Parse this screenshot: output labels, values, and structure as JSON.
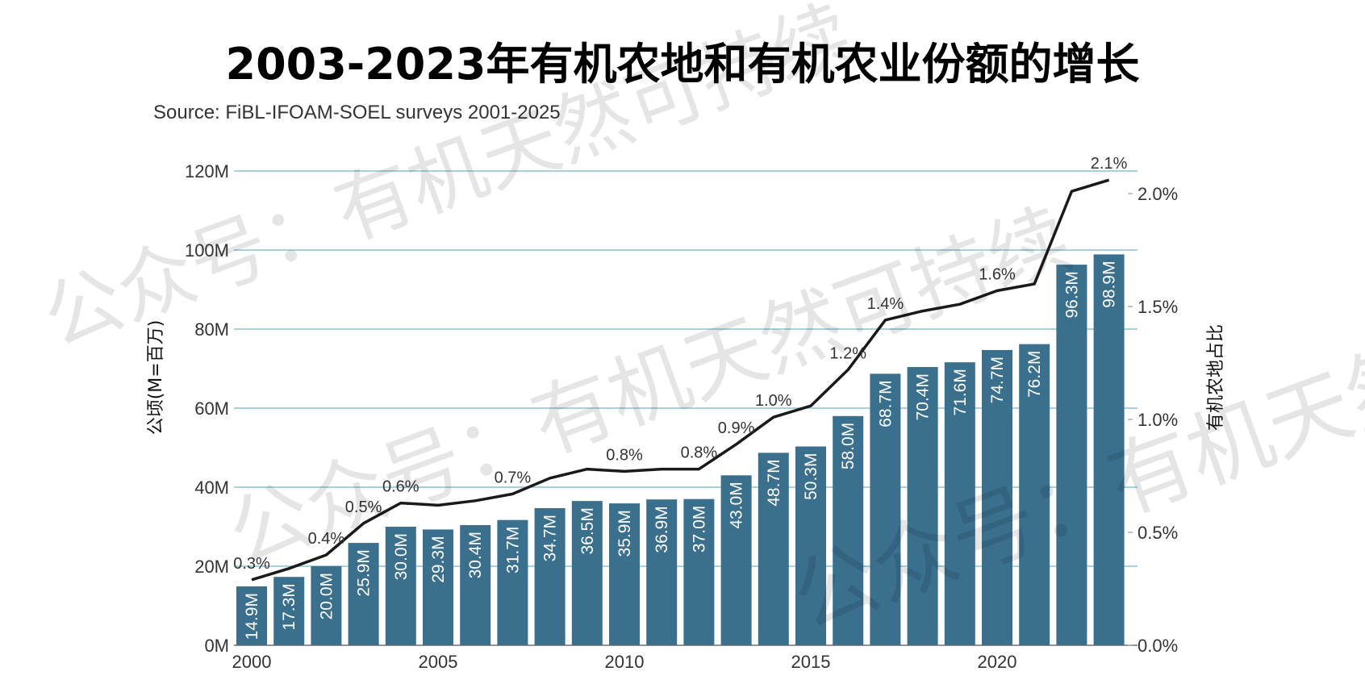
{
  "chart_data": {
    "type": "bar",
    "title": "2003-2023年有机农地和有机农业份额的增长",
    "subtitle": "Source: FiBL-IFOAM-SOEL surveys 2001-2025",
    "ylabel": "公顷(M=百万)",
    "y2label": "有机农地占比",
    "ylim": [
      0,
      120
    ],
    "y2lim": [
      0,
      2.0
    ],
    "y_ticks": [
      "0M",
      "20M",
      "40M",
      "60M",
      "80M",
      "100M",
      "120M"
    ],
    "y2_ticks": [
      "0.0%",
      "0.5%",
      "1.0%",
      "1.5%",
      "2.0%"
    ],
    "x_ticks": [
      "2000",
      "2005",
      "2010",
      "2015",
      "2020"
    ],
    "x": [
      2000,
      2001,
      2002,
      2003,
      2004,
      2005,
      2006,
      2007,
      2008,
      2009,
      2010,
      2011,
      2012,
      2013,
      2014,
      2015,
      2016,
      2017,
      2018,
      2019,
      2020,
      2021,
      2022,
      2023
    ],
    "series": [
      {
        "type": "bar",
        "color": "#3a6f8e",
        "values": [
          14.9,
          17.3,
          20.0,
          25.9,
          30.0,
          29.3,
          30.4,
          31.7,
          34.7,
          36.5,
          35.9,
          36.9,
          37.0,
          43.0,
          48.7,
          50.3,
          58.0,
          68.7,
          70.4,
          71.6,
          74.7,
          76.2,
          96.3,
          98.9
        ],
        "labels": [
          "14.9M",
          "17.3M",
          "20.0M",
          "25.9M",
          "30.0M",
          "29.3M",
          "30.4M",
          "31.7M",
          "34.7M",
          "36.5M",
          "35.9M",
          "36.9M",
          "37.0M",
          "43.0M",
          "48.7M",
          "50.3M",
          "58.0M",
          "68.7M",
          "70.4M",
          "71.6M",
          "74.7M",
          "76.2M",
          "96.3M",
          "98.9M"
        ]
      },
      {
        "type": "line",
        "axis": "right",
        "color": "#1a1a1a",
        "values": [
          0.29,
          0.34,
          0.4,
          0.54,
          0.63,
          0.62,
          0.64,
          0.67,
          0.74,
          0.78,
          0.77,
          0.78,
          0.78,
          0.89,
          1.01,
          1.06,
          1.22,
          1.44,
          1.48,
          1.51,
          1.57,
          1.6,
          2.01,
          2.06
        ],
        "labels": [
          "0.3%",
          "",
          "0.4%",
          "0.5%",
          "0.6%",
          "",
          "",
          "0.7%",
          "",
          "",
          "0.8%",
          "",
          "0.8%",
          "0.9%",
          "1.0%",
          "",
          "1.2%",
          "1.4%",
          "",
          "",
          "1.6%",
          "",
          "",
          "2.1%"
        ]
      }
    ],
    "grid": true,
    "legend": "none"
  },
  "watermark": {
    "text": "公众号：有机天然可持续"
  }
}
